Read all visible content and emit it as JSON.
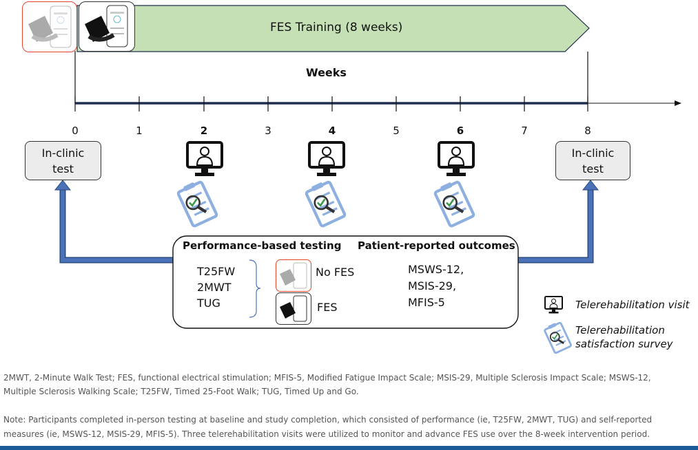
{
  "banner": {
    "label": "FES Training (8 weeks)",
    "fill": "#c5e0b4"
  },
  "devices": {
    "no_fes_icon": "wearable-device-gray",
    "fes_icon": "wearable-device-black"
  },
  "timeline": {
    "title": "Weeks",
    "ticks": [
      {
        "label": "0",
        "bold": false
      },
      {
        "label": "1",
        "bold": false
      },
      {
        "label": "2",
        "bold": true
      },
      {
        "label": "3",
        "bold": false
      },
      {
        "label": "4",
        "bold": true
      },
      {
        "label": "5",
        "bold": false
      },
      {
        "label": "6",
        "bold": true
      },
      {
        "label": "7",
        "bold": false
      },
      {
        "label": "8",
        "bold": false
      }
    ],
    "line_color": "#1f2d4f"
  },
  "clinic_left": {
    "line1": "In-clinic",
    "line2": "test"
  },
  "clinic_right": {
    "line1": "In-clinic",
    "line2": "test"
  },
  "testing": {
    "performance_title": "Performance-based testing",
    "patient_title": "Patient-reported outcomes",
    "performance_items": [
      "T25FW",
      "2MWT",
      "TUG"
    ],
    "no_fes": "No FES",
    "fes": "FES",
    "patient_items": [
      "MSWS-12,",
      "MSIS-29,",
      "MFIS-5"
    ]
  },
  "arrow_color": "#4a72b8",
  "legend": {
    "visit": "Telerehabilitation visit",
    "survey_line1": "Telerehabilitation",
    "survey_line2": "satisfaction survey"
  },
  "footnotes": {
    "abbrev_line1": "2MWT, 2-Minute Walk Test; FES, functional electrical stimulation; MFIS-5, Modified Fatigue Impact Scale; MSIS-29, Multiple Sclerosis Impact Scale; MSWS-12,",
    "abbrev_line2": "Multiple Sclerosis Walking Scale; T25FW, Timed 25-Foot Walk; TUG, Timed Up and Go.",
    "note_line1": "Note: Participants completed in-person testing at baseline and study completion, which consisted of performance (ie, T25FW, 2MWT, TUG) and self-reported",
    "note_line2": "measures (ie, MSWS-12, MSIS-29, MFIS-5). Three telerehabilitation visits were utilized to monitor and advance FES use over the 8-week intervention period."
  }
}
